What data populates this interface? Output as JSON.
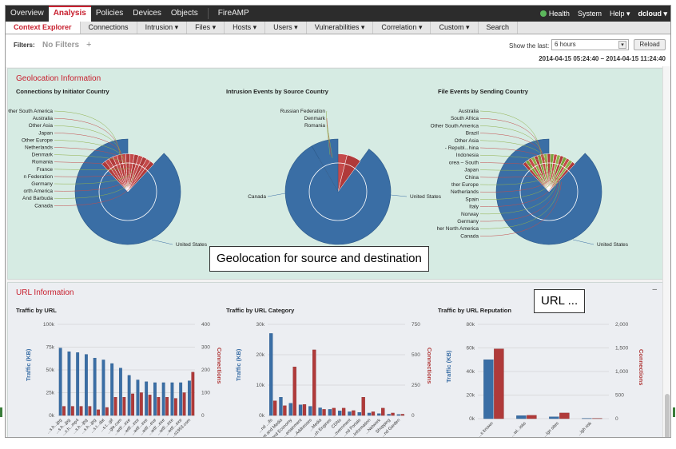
{
  "topnav": {
    "items": [
      "Overview",
      "Analysis",
      "Policies",
      "Devices",
      "Objects",
      "FireAMP"
    ],
    "active": "Analysis",
    "health": "Health",
    "system": "System",
    "help": "Help ▾",
    "user": "dcloud ▾"
  },
  "subnav": {
    "items": [
      "Context Explorer",
      "Connections",
      "Intrusion ▾",
      "Files ▾",
      "Hosts ▾",
      "Users ▾",
      "Vulnerabilities ▾",
      "Correlation ▾",
      "Custom ▾",
      "Search"
    ],
    "active": "Context Explorer"
  },
  "filters": {
    "label": "Filters:",
    "value": "No Filters",
    "add": "+",
    "show_last_label": "Show the last:",
    "range_value": "6 hours",
    "reload": "Reload",
    "time_range": "2014-04-15 05:24:40 – 2014-04-15 11:24:40"
  },
  "geo": {
    "title": "Geolocation Information",
    "callout": "Geolocation for source and destination",
    "charts": [
      {
        "title": "Connections by Initiator Country",
        "labels_left": [
          "Other South America",
          "Australia",
          "Other Asia",
          "Japan",
          "Other Europe",
          "Netherlands",
          "Denmark",
          "Romania",
          "France",
          "n Federation",
          "Germany",
          "orth America",
          "And Barbuda",
          "Canada"
        ],
        "label_main": "United States"
      },
      {
        "title": "Intrusion Events by Source Country",
        "labels_left": [
          "Russian Federation",
          "Denmark",
          "Romania"
        ],
        "label_left_mid": "Canada",
        "label_main": "United States"
      },
      {
        "title": "File Events by Sending Country",
        "labels_left": [
          "Australia",
          "South Africa",
          "Other South America",
          "Brazil",
          "Other Asia",
          "- Republ...hina",
          "Indonesia",
          "orea – South",
          "Japan",
          "China",
          "ther Europe",
          "Netherlands",
          "Spain",
          "Italy",
          "Norway",
          "Germany",
          "her North America",
          "Canada"
        ],
        "label_main": "United States"
      }
    ]
  },
  "url": {
    "title": "URL Information",
    "collapse": "–",
    "callout": "URL ...",
    "y_left_label": "Traffic (KB)",
    "y_right_label": "Connections"
  },
  "chart_data": [
    {
      "type": "bar",
      "title": "Traffic by URL",
      "ylabel": "Traffic (KB)",
      "y2label": "Connections",
      "ylim": [
        0,
        100000
      ],
      "y2lim": [
        0,
        400
      ],
      "yticks": [
        "100k",
        "75k",
        "50k",
        "25k",
        "0k"
      ],
      "y2ticks": [
        "400",
        "300",
        "200",
        "100",
        "0"
      ],
      "categories": [
        "...s.h...jpg",
        "...s.h...jpg",
        "...s.h...mp4",
        "...s.h...jpg",
        "...s.h...jpg",
        "...s.t...dat",
        "...s.t...gif",
        "...gle.com",
        "...wtf/...exe",
        "...wtf/...exe",
        "...wtf/...exe",
        "...wtf/...exe",
        "...wtf/...exe",
        "...wtf/...exe",
        "...wtf/...exe",
        "...s1953.com"
      ],
      "series": [
        {
          "name": "Traffic (KB)",
          "color": "#3a6ea5",
          "values": [
            74000,
            70000,
            69000,
            67000,
            63000,
            61000,
            57000,
            52000,
            44000,
            39000,
            37000,
            36000,
            36000,
            36000,
            36000,
            38000
          ]
        },
        {
          "name": "Connections",
          "color": "#b03a3a",
          "values": [
            40,
            40,
            40,
            40,
            25,
            35,
            80,
            80,
            95,
            100,
            90,
            80,
            80,
            75,
            100,
            190
          ]
        }
      ]
    },
    {
      "type": "bar",
      "title": "Traffic by URL Category",
      "ylabel": "Traffic (KB)",
      "y2label": "Connections",
      "ylim": [
        0,
        30000
      ],
      "y2lim": [
        0,
        750
      ],
      "yticks": [
        "30k",
        "20k",
        "10k",
        "0k"
      ],
      "y2ticks": [
        "750",
        "500",
        "250",
        "0"
      ],
      "categories": [
        "...nd ...ifs",
        "...et and Media",
        "...and Economy",
        "...ertainment",
        "...Addresses",
        "...Media",
        "...ch Engines",
        "CDNs",
        "...overnment",
        "...nd Portals",
        "...Information",
        "...Network",
        "Shopping",
        "...nd Garden"
      ],
      "series": [
        {
          "name": "Traffic (KB)",
          "color": "#3a6ea5",
          "values": [
            27000,
            6000,
            4000,
            3500,
            3000,
            2500,
            2000,
            1500,
            1200,
            1000,
            800,
            600,
            400,
            300
          ]
        },
        {
          "name": "Connections",
          "color": "#b03a3a",
          "values": [
            120,
            80,
            400,
            90,
            540,
            50,
            60,
            60,
            40,
            150,
            30,
            60,
            20,
            10
          ]
        }
      ]
    },
    {
      "type": "bar",
      "title": "Traffic by URL Reputation",
      "ylabel": "Traffic (KB)",
      "y2label": "Connections",
      "ylim": [
        0,
        80000
      ],
      "y2lim": [
        0,
        2000
      ],
      "yticks": [
        "80k",
        "60k",
        "40k",
        "20k",
        "0k"
      ],
      "y2ticks": [
        "2,000",
        "1,500",
        "1,000",
        "500",
        "0"
      ],
      "categories": [
        "...s known",
        "...wi...isks",
        "...ign sites",
        "...igh risk"
      ],
      "series": [
        {
          "name": "Traffic (KB)",
          "color": "#3a6ea5",
          "values": [
            50000,
            2500,
            1500,
            200
          ]
        },
        {
          "name": "Connections",
          "color": "#b03a3a",
          "values": [
            1480,
            70,
            120,
            5
          ]
        }
      ]
    }
  ]
}
